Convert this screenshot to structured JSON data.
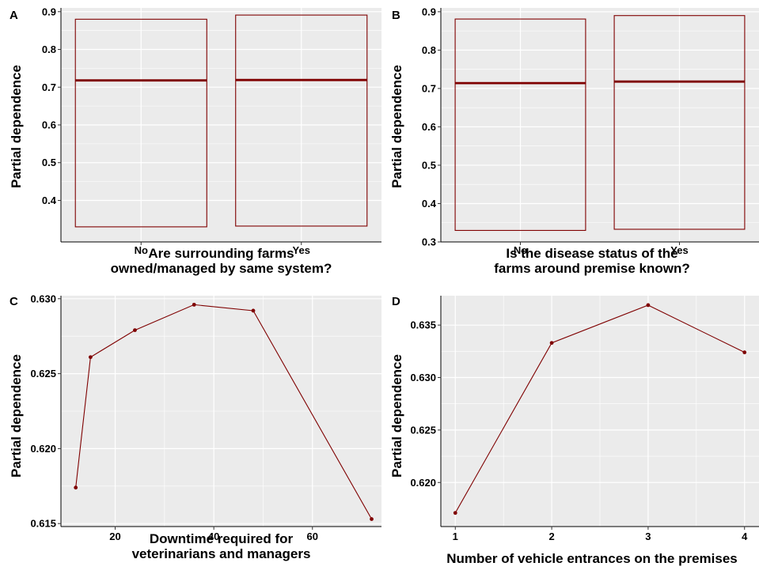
{
  "figure": {
    "background": "#ffffff",
    "panel_background": "#ebebeb",
    "grid_color": "#ffffff",
    "series_color": "#7f0000"
  },
  "chart_data": [
    {
      "panel": "A",
      "type": "box",
      "categories": [
        "No",
        "Yes"
      ],
      "boxes": [
        {
          "category": "No",
          "lower": 0.33,
          "median": 0.718,
          "upper": 0.88
        },
        {
          "category": "Yes",
          "lower": 0.332,
          "median": 0.719,
          "upper": 0.891
        }
      ],
      "xlabel": "Are surrounding farms\nowned/managed by same system?",
      "ylabel": "Partial dependence",
      "ylim": [
        0.29,
        0.91
      ],
      "yticks": [
        0.4,
        0.5,
        0.6,
        0.7,
        0.8,
        0.9
      ],
      "ytick_labels": [
        "0.4",
        "0.5",
        "0.6",
        "0.7",
        "0.8",
        "0.9"
      ],
      "grid": true
    },
    {
      "panel": "B",
      "type": "box",
      "categories": [
        "No",
        "Yes"
      ],
      "boxes": [
        {
          "category": "No",
          "lower": 0.33,
          "median": 0.714,
          "upper": 0.881
        },
        {
          "category": "Yes",
          "lower": 0.333,
          "median": 0.718,
          "upper": 0.89
        }
      ],
      "xlabel": "Is the disease status of the\nfarms around premise known?",
      "ylabel": "Partial dependence",
      "ylim": [
        0.3,
        0.91
      ],
      "yticks": [
        0.3,
        0.4,
        0.5,
        0.6,
        0.7,
        0.8,
        0.9
      ],
      "ytick_labels": [
        "0.3",
        "0.4",
        "0.5",
        "0.6",
        "0.7",
        "0.8",
        "0.9"
      ],
      "grid": true
    },
    {
      "panel": "C",
      "type": "line",
      "x": [
        12,
        15,
        24,
        36,
        48,
        72
      ],
      "y": [
        0.6174,
        0.6261,
        0.6279,
        0.6296,
        0.6292,
        0.6153
      ],
      "xlabel": "Downtime required for\nveterinarians and managers",
      "ylabel": "Partial dependence",
      "xlim": [
        9,
        74
      ],
      "ylim": [
        0.6148,
        0.6302
      ],
      "xticks": [
        20,
        40,
        60
      ],
      "xtick_labels": [
        "20",
        "40",
        "60"
      ],
      "yticks": [
        0.615,
        0.62,
        0.625,
        0.63
      ],
      "ytick_labels": [
        "0.615",
        "0.620",
        "0.625",
        "0.630"
      ],
      "grid": true
    },
    {
      "panel": "D",
      "type": "line",
      "x": [
        1,
        2,
        3,
        4
      ],
      "y": [
        0.6171,
        0.6333,
        0.6369,
        0.6324
      ],
      "xlabel": "Number of vehicle entrances on the premises",
      "ylabel": "Partial dependence",
      "xlim": [
        0.85,
        4.15
      ],
      "ylim": [
        0.6158,
        0.6378
      ],
      "xticks": [
        1,
        2,
        3,
        4
      ],
      "xtick_labels": [
        "1",
        "2",
        "3",
        "4"
      ],
      "yticks": [
        0.62,
        0.625,
        0.63,
        0.635
      ],
      "ytick_labels": [
        "0.620",
        "0.625",
        "0.630",
        "0.635"
      ],
      "grid": true
    }
  ]
}
